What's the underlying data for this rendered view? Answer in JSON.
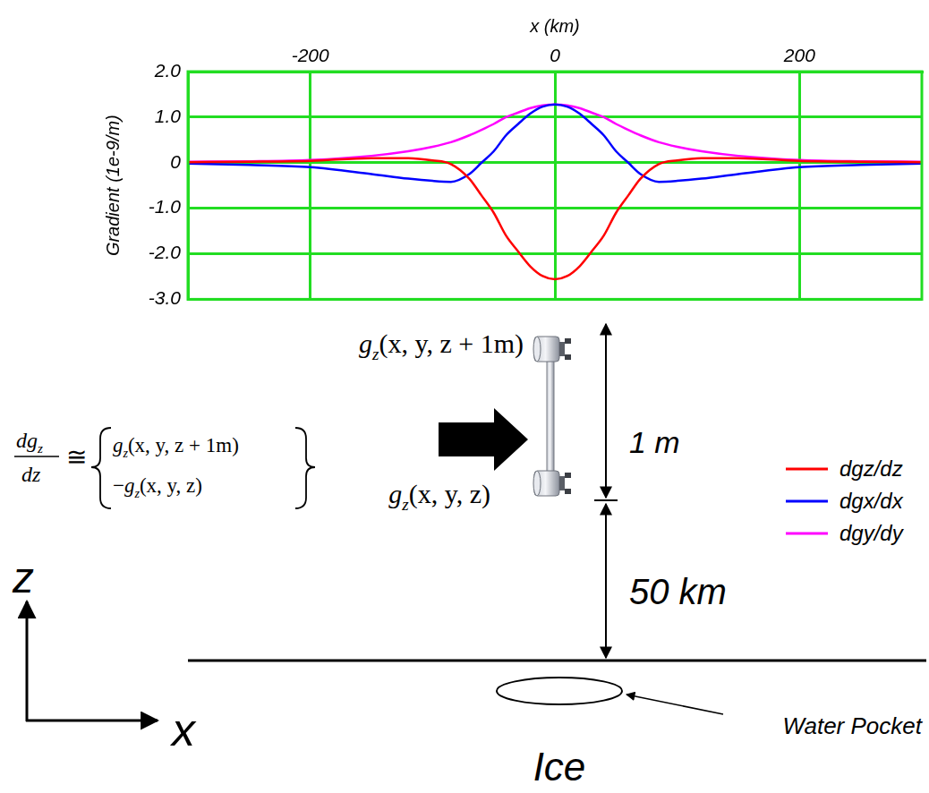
{
  "chart_data": {
    "type": "line",
    "x_label": "x (km)",
    "y_label": "Gradient (1e-9/m)",
    "x": [
      -300,
      -250,
      -200,
      -150,
      -120,
      -100,
      -85,
      -70,
      -60,
      -50,
      -40,
      -30,
      -20,
      -10,
      0,
      10,
      20,
      30,
      40,
      50,
      60,
      70,
      85,
      100,
      120,
      150,
      200,
      250,
      300
    ],
    "series": [
      {
        "name": "dgz/dz",
        "color": "#ff0000",
        "values": [
          0.01,
          0.02,
          0.04,
          0.1,
          0.1,
          0.05,
          -0.03,
          -0.35,
          -0.72,
          -1.1,
          -1.6,
          -1.95,
          -2.28,
          -2.49,
          -2.56,
          -2.49,
          -2.28,
          -1.95,
          -1.6,
          -1.1,
          -0.72,
          -0.35,
          -0.03,
          0.05,
          0.1,
          0.1,
          0.04,
          0.02,
          0.01
        ]
      },
      {
        "name": "dgx/dx",
        "color": "#0000ff",
        "values": [
          -0.02,
          -0.05,
          -0.1,
          -0.25,
          -0.35,
          -0.4,
          -0.42,
          -0.25,
          0.0,
          0.25,
          0.6,
          0.85,
          1.08,
          1.23,
          1.28,
          1.23,
          1.08,
          0.85,
          0.6,
          0.25,
          0.0,
          -0.25,
          -0.42,
          -0.4,
          -0.35,
          -0.25,
          -0.1,
          -0.05,
          -0.02
        ]
      },
      {
        "name": "dgy/dy",
        "color": "#ff00ff",
        "values": [
          0.02,
          0.03,
          0.06,
          0.15,
          0.25,
          0.35,
          0.45,
          0.6,
          0.72,
          0.85,
          1.0,
          1.1,
          1.2,
          1.26,
          1.28,
          1.26,
          1.2,
          1.1,
          1.0,
          0.85,
          0.72,
          0.6,
          0.45,
          0.35,
          0.25,
          0.15,
          0.06,
          0.03,
          0.02
        ]
      }
    ],
    "xlim": [
      -300,
      300
    ],
    "xticks": [
      -200,
      0,
      200
    ],
    "ylim": [
      -3,
      2
    ],
    "yticks": [
      {
        "value": 2,
        "label": "2.0"
      },
      {
        "value": 1,
        "label": "1.0"
      },
      0,
      {
        "value": -1,
        "label": "-1.0"
      },
      {
        "value": -2,
        "label": "-2.0"
      },
      {
        "value": -3,
        "label": "-3.0"
      }
    ],
    "grid": true,
    "legend": "right",
    "marker": "none",
    "line_style": "solid"
  },
  "diagram": {
    "formula": {
      "numerator": {
        "symbol": "dg",
        "subscript": "z"
      },
      "denominator": "dz",
      "relation": "≅",
      "terms": [
        {
          "sign": "",
          "symbol": "g",
          "subscript": "z",
          "args": "(x, y, z + 1m)"
        },
        {
          "sign": "−",
          "symbol": "g",
          "subscript": "z",
          "args": "(x, y, z)"
        }
      ]
    },
    "top_sensor": {
      "symbol": "g",
      "subscript": "z",
      "args": "(x, y, z + 1m)"
    },
    "bottom_sensor": {
      "symbol": "g",
      "subscript": "z",
      "args": "(x, y, z)"
    },
    "sensor_spacing": "1 m",
    "altitude": "50 km",
    "axis_z": "z",
    "axis_x": "x",
    "target": "Water Pocket",
    "medium": "Ice"
  }
}
